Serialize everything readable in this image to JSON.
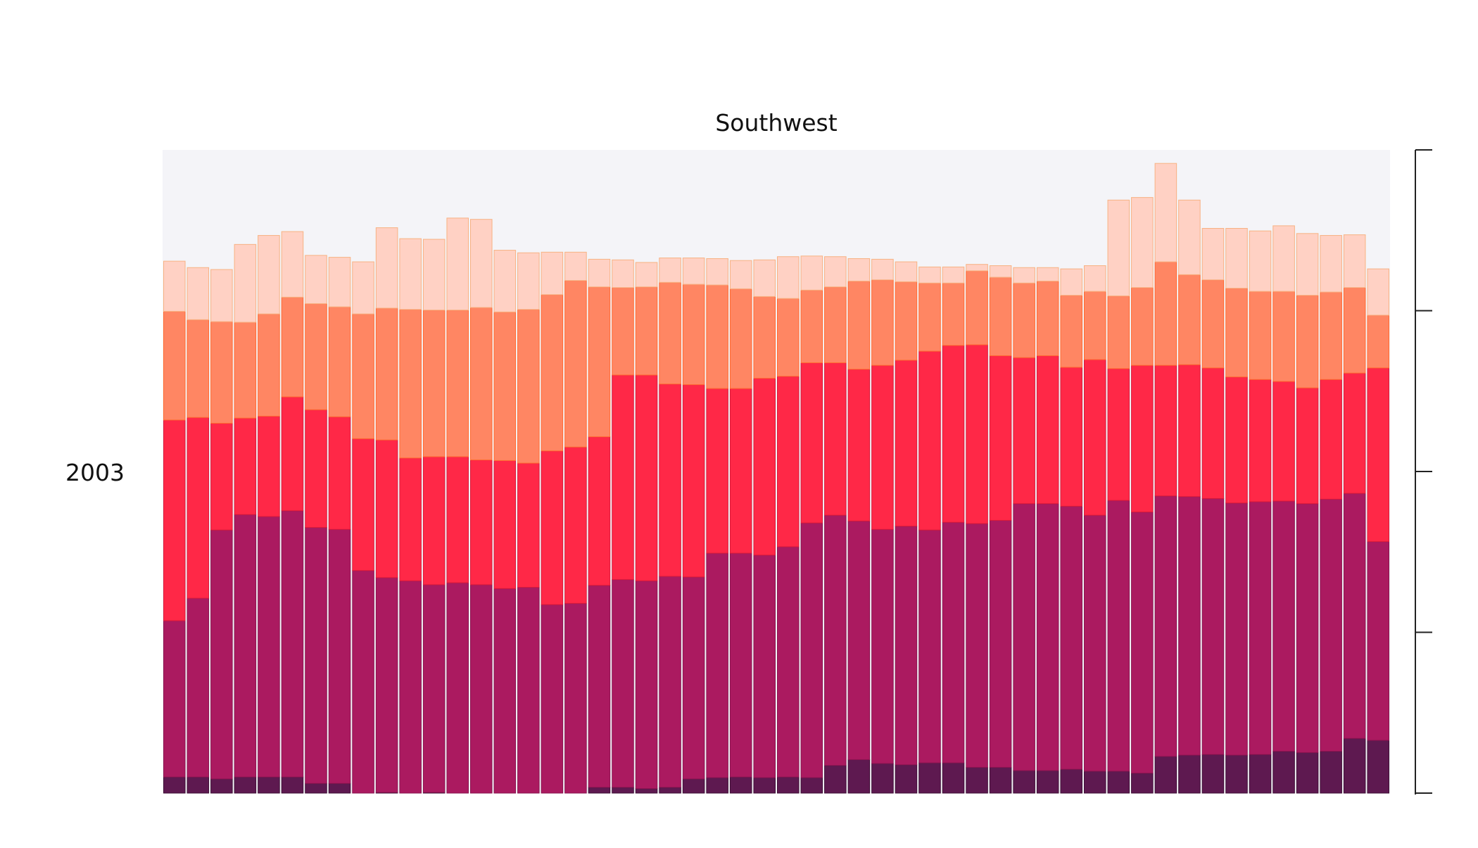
{
  "chart_data": {
    "type": "bar",
    "stacked": true,
    "title": "Southwest",
    "row_label": "2003",
    "xlabel": "",
    "ylabel": "",
    "ylim": [
      0,
      100
    ],
    "y_ticks": [
      0,
      25,
      50,
      75,
      100
    ],
    "y_tick_labels_shown": false,
    "y_axis_side": "right",
    "grid": false,
    "legend": "none",
    "bar_count": 52,
    "plot_background": "#f4f4f8",
    "series": [
      {
        "color": "#5e1950",
        "stroke": "#3f0f36",
        "values": [
          2.5,
          2.5,
          2.2,
          2.5,
          2.5,
          2.5,
          1.5,
          1.5,
          0,
          0.1,
          0,
          0.1,
          0,
          0,
          0,
          0,
          0,
          0,
          0.9,
          0.9,
          0.7,
          0.9,
          2.2,
          2.4,
          2.5,
          2.4,
          2.5,
          2.4,
          4.3,
          5.2,
          4.6,
          4.4,
          4.7,
          4.7,
          4.0,
          4.0,
          3.5,
          3.5,
          3.7,
          3.4,
          3.4,
          3.1,
          5.7,
          5.9,
          6.0,
          5.9,
          6.0,
          6.5,
          6.3,
          6.5,
          8.5,
          8.2
        ]
      },
      {
        "color": "#ab1a60",
        "stroke": "#8a1450",
        "values": [
          24.3,
          27.8,
          38.7,
          40.8,
          40.5,
          41.4,
          39.8,
          39.5,
          34.6,
          33.4,
          33.0,
          32.3,
          32.7,
          32.4,
          31.8,
          32.0,
          29.3,
          29.5,
          31.4,
          32.3,
          32.3,
          32.8,
          31.4,
          34.9,
          34.8,
          34.6,
          35.8,
          39.6,
          38.9,
          37.1,
          36.4,
          37.1,
          36.2,
          37.4,
          37.9,
          38.4,
          41.5,
          41.5,
          40.9,
          39.8,
          42.1,
          40.6,
          40.5,
          40.2,
          39.8,
          39.2,
          39.3,
          38.9,
          38.7,
          39.2,
          38.1,
          30.9
        ]
      },
      {
        "color": "#ff2847",
        "stroke": "#d81a3a",
        "values": [
          31.2,
          28.1,
          16.6,
          15.0,
          15.6,
          17.7,
          18.3,
          17.5,
          20.5,
          21.4,
          19.1,
          19.9,
          19.6,
          19.4,
          19.9,
          19.3,
          23.9,
          24.3,
          23.1,
          31.8,
          32.0,
          29.9,
          29.9,
          25.6,
          25.6,
          27.5,
          26.5,
          24.9,
          23.7,
          23.6,
          25.5,
          25.8,
          27.8,
          27.5,
          27.8,
          25.6,
          22.7,
          23.0,
          21.6,
          24.2,
          20.5,
          22.8,
          20.3,
          20.5,
          20.3,
          19.6,
          19.0,
          18.6,
          18.0,
          18.6,
          18.7,
          27.0
        ]
      },
      {
        "color": "#ff8663",
        "stroke": "#ff6a30",
        "values": [
          16.9,
          15.2,
          15.8,
          14.9,
          15.9,
          15.5,
          16.5,
          17.1,
          19.4,
          20.5,
          23.1,
          22.8,
          22.8,
          23.7,
          23.1,
          23.9,
          24.3,
          25.9,
          23.3,
          13.6,
          13.7,
          15.8,
          15.6,
          16.1,
          15.5,
          12.7,
          12.1,
          11.3,
          11.8,
          13.7,
          13.3,
          12.2,
          10.6,
          9.7,
          11.5,
          12.2,
          11.6,
          11.6,
          11.2,
          10.6,
          11.3,
          12.1,
          16.1,
          14.0,
          13.7,
          13.8,
          13.7,
          14.0,
          14.4,
          13.6,
          13.3,
          8.2
        ]
      },
      {
        "color": "#ffd1c4",
        "stroke": "#f7b283",
        "values": [
          7.8,
          8.1,
          8.1,
          12.1,
          12.2,
          10.2,
          7.5,
          7.7,
          8.1,
          12.5,
          11.0,
          11.0,
          14.3,
          13.7,
          9.6,
          8.8,
          6.6,
          4.4,
          4.3,
          4.3,
          3.8,
          3.8,
          4.1,
          4.1,
          4.4,
          5.7,
          6.5,
          5.3,
          4.7,
          3.5,
          3.2,
          3.1,
          2.5,
          2.5,
          1.0,
          1.8,
          2.4,
          2.1,
          4.1,
          4.0,
          14.9,
          14.0,
          15.3,
          11.6,
          8.0,
          9.3,
          9.4,
          10.2,
          9.6,
          8.8,
          8.2,
          7.2
        ]
      }
    ]
  }
}
